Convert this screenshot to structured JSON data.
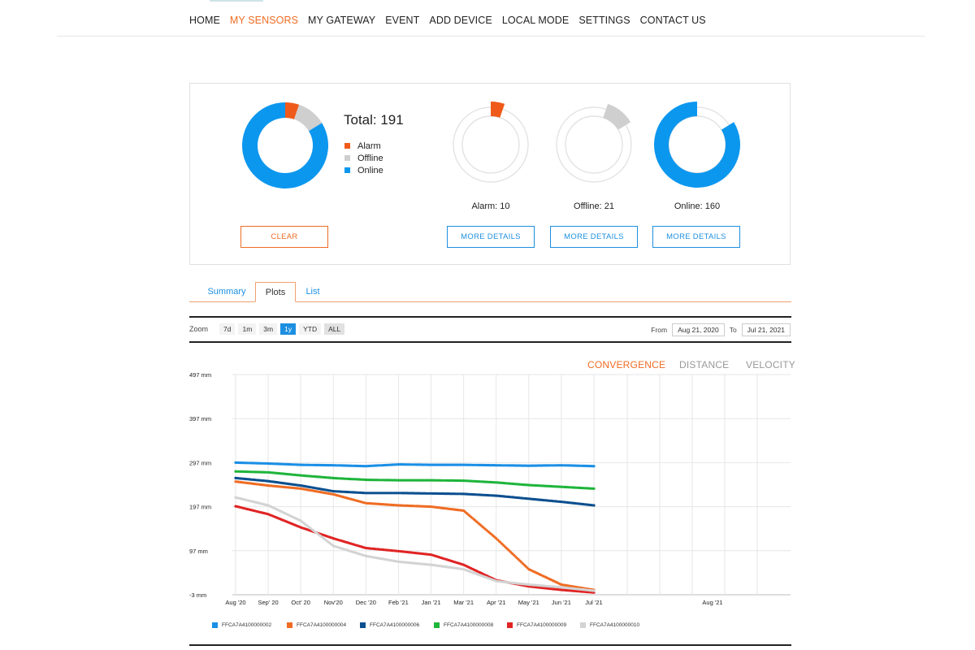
{
  "nav": {
    "items": [
      "HOME",
      "MY SENSORS",
      "MY GATEWAY",
      "EVENT",
      "ADD DEVICE",
      "LOCAL MODE",
      "SETTINGS",
      "CONTACT US"
    ],
    "active": "MY SENSORS"
  },
  "summary": {
    "total_label": "Total: 191",
    "legend": [
      {
        "label": "Alarm",
        "color": "#ef5a1a"
      },
      {
        "label": "Offline",
        "color": "#cfcfcf"
      },
      {
        "label": "Online",
        "color": "#0c97ef"
      }
    ],
    "counts": {
      "alarm": 10,
      "offline": 21,
      "online": 160,
      "total": 191
    },
    "alarm_label": "Alarm: 10",
    "offline_label": "Offline: 21",
    "online_label": "Online: 160",
    "clear_button": "CLEAR",
    "details_button": "MORE DETAILS"
  },
  "tabs": [
    "Summary",
    "Plots",
    "List"
  ],
  "selected_tab": "Plots",
  "zoom": {
    "label": "Zoom",
    "options": [
      "7d",
      "1m",
      "3m",
      "1y",
      "YTD",
      "ALL"
    ],
    "selected": "1y"
  },
  "dates": {
    "from_label": "From",
    "from": "Aug 21, 2020",
    "to_label": "To",
    "to": "Jul 21, 2021"
  },
  "metrics": {
    "items": [
      "CONVERGENCE",
      "DISTANCE",
      "VELOCITY"
    ],
    "selected": "CONVERGENCE"
  },
  "chart_data": {
    "type": "scatter",
    "y_ticks": [
      "497 mm",
      "397 mm",
      "297 mm",
      "197 mm",
      "97 mm",
      "-3 mm"
    ],
    "ylim": [
      -3,
      497
    ],
    "x_ticks": [
      "Aug '20",
      "Sep' 20",
      "Oct' 20",
      "Nov'20",
      "Dec '20",
      "Feb '21",
      "Jan '21",
      "Mar '21",
      "Apr '21",
      "May '21",
      "Jun '21",
      "Jul '21"
    ],
    "navigator_tick": "Aug '21",
    "series": [
      {
        "name": "FFCA7A4100000002",
        "color": "#1a8fe6",
        "points": [
          [
            0,
            297
          ],
          [
            1,
            295
          ],
          [
            2,
            292
          ],
          [
            3,
            291
          ],
          [
            4,
            289
          ],
          [
            5,
            293
          ],
          [
            6,
            292
          ],
          [
            7,
            292
          ],
          [
            8,
            291
          ],
          [
            9,
            290
          ],
          [
            10,
            291
          ],
          [
            11,
            289
          ]
        ]
      },
      {
        "name": "FFCA7A4100000004",
        "color": "#ef6c23",
        "points": [
          [
            0,
            254
          ],
          [
            1,
            245
          ],
          [
            2,
            238
          ],
          [
            3,
            225
          ],
          [
            4,
            205
          ],
          [
            5,
            200
          ],
          [
            6,
            197
          ],
          [
            7,
            188
          ],
          [
            8,
            125
          ],
          [
            9,
            55
          ],
          [
            10,
            20
          ],
          [
            11,
            8
          ]
        ]
      },
      {
        "name": "FFCA7A4100000006",
        "color": "#0b4f8f",
        "points": [
          [
            0,
            262
          ],
          [
            1,
            255
          ],
          [
            2,
            245
          ],
          [
            3,
            232
          ],
          [
            4,
            228
          ],
          [
            5,
            228
          ],
          [
            6,
            227
          ],
          [
            7,
            226
          ],
          [
            8,
            222
          ],
          [
            9,
            215
          ],
          [
            10,
            208
          ],
          [
            11,
            200
          ]
        ]
      },
      {
        "name": "FFCA7A4100000008",
        "color": "#1fb53b",
        "points": [
          [
            0,
            277
          ],
          [
            1,
            275
          ],
          [
            2,
            268
          ],
          [
            3,
            262
          ],
          [
            4,
            258
          ],
          [
            5,
            257
          ],
          [
            6,
            257
          ],
          [
            7,
            256
          ],
          [
            8,
            252
          ],
          [
            9,
            246
          ],
          [
            10,
            242
          ],
          [
            11,
            238
          ]
        ]
      },
      {
        "name": "FFCA7A4100000009",
        "color": "#e02424",
        "points": [
          [
            0,
            198
          ],
          [
            1,
            180
          ],
          [
            2,
            150
          ],
          [
            3,
            125
          ],
          [
            4,
            103
          ],
          [
            5,
            96
          ],
          [
            6,
            88
          ],
          [
            7,
            65
          ],
          [
            8,
            30
          ],
          [
            9,
            16
          ],
          [
            10,
            8
          ],
          [
            11,
            2
          ]
        ]
      },
      {
        "name": "FFCA7A4100000010",
        "color": "#d3d3d3",
        "points": [
          [
            0,
            218
          ],
          [
            1,
            200
          ],
          [
            2,
            165
          ],
          [
            3,
            108
          ],
          [
            4,
            85
          ],
          [
            5,
            72
          ],
          [
            6,
            65
          ],
          [
            7,
            55
          ],
          [
            8,
            28
          ],
          [
            9,
            20
          ],
          [
            10,
            14
          ],
          [
            11,
            6
          ]
        ]
      }
    ]
  }
}
